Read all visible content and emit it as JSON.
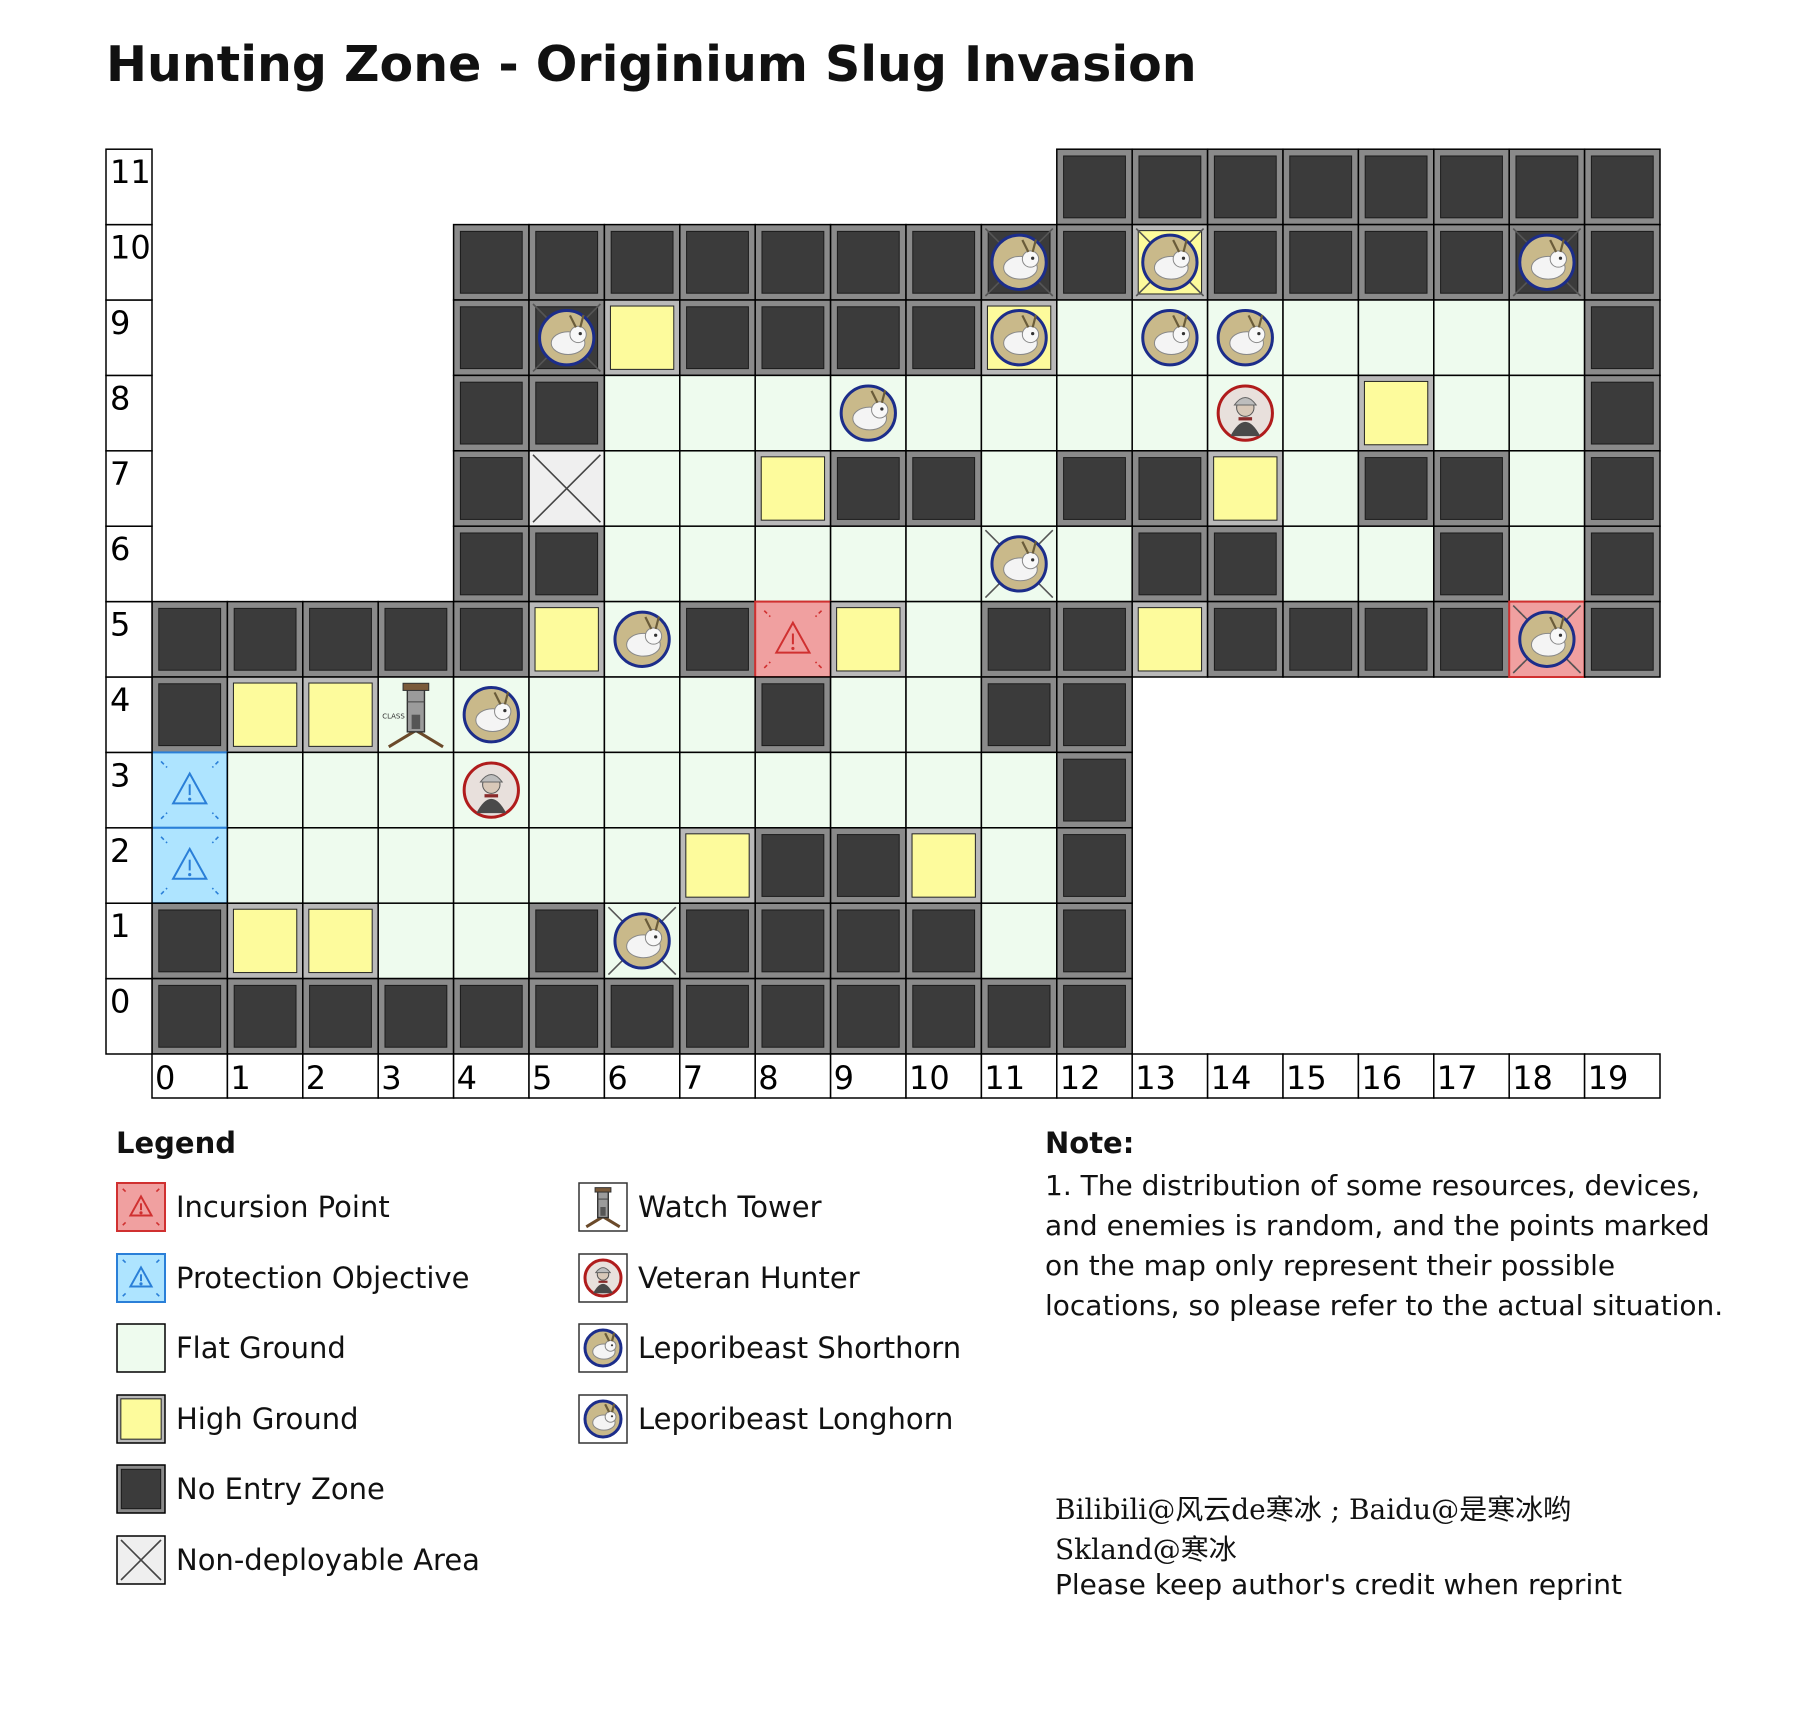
{
  "title": "Hunting Zone - Originium Slug Invasion",
  "grid": {
    "cols": 20,
    "rows": 12,
    "x_labels": [
      "0",
      "1",
      "2",
      "3",
      "4",
      "5",
      "6",
      "7",
      "8",
      "9",
      "10",
      "11",
      "12",
      "13",
      "14",
      "15",
      "16",
      "17",
      "18",
      "19"
    ],
    "y_labels": [
      "0",
      "1",
      "2",
      "3",
      "4",
      "5",
      "6",
      "7",
      "8",
      "9",
      "10",
      "11"
    ],
    "map_rows_top_to_bottom": [
      "............XXXXXXXX",
      "....XXXXXXXXXHXXXXXX",
      "....XXHXXXXHFFFFFFFX",
      "....XXFFFFFFFFFFHFFX",
      "....XNFFHXXFXXHFXXFX",
      "....XXFFFFFFFXXFFXFX",
      "XXXXXHFXIHFXXHXXXXIX",
      "XHHFFFFFXFFXX.......",
      "PFFFFFFFFFFFX.......",
      "PFFFFFFHXXHFX.......",
      "XHHFFXFXXXXFX.......",
      "XXXXXXXXXXXXX......."
    ],
    "tile_colors": {
      "F": "#eefbee",
      "H": "#fdfb9c",
      "X": "#3b3b3b",
      "N": "#efefef",
      "I": "#f0a0a0",
      "P": "#aee4ff"
    }
  },
  "markers": [
    {
      "type": "shorthorn",
      "x": 11,
      "y": 10,
      "no_deploy": true
    },
    {
      "type": "shorthorn",
      "x": 13,
      "y": 10,
      "no_deploy": true
    },
    {
      "type": "shorthorn",
      "x": 18,
      "y": 10,
      "no_deploy": true
    },
    {
      "type": "shorthorn",
      "x": 5,
      "y": 9,
      "no_deploy": true
    },
    {
      "type": "shorthorn",
      "x": 11,
      "y": 9
    },
    {
      "type": "shorthorn",
      "x": 13,
      "y": 9
    },
    {
      "type": "shorthorn",
      "x": 14,
      "y": 9
    },
    {
      "type": "shorthorn",
      "x": 9,
      "y": 8
    },
    {
      "type": "hunter",
      "x": 14,
      "y": 8
    },
    {
      "type": "shorthorn",
      "x": 11,
      "y": 6,
      "no_deploy": true
    },
    {
      "type": "shorthorn",
      "x": 6,
      "y": 5
    },
    {
      "type": "shorthorn",
      "x": 18,
      "y": 5,
      "no_deploy": true
    },
    {
      "type": "tower",
      "x": 3,
      "y": 4
    },
    {
      "type": "shorthorn",
      "x": 4,
      "y": 4
    },
    {
      "type": "hunter",
      "x": 4,
      "y": 3
    },
    {
      "type": "shorthorn",
      "x": 6,
      "y": 1,
      "no_deploy": true
    }
  ],
  "legend": {
    "title": "Legend",
    "left": [
      {
        "swatch": "incursion",
        "label": "Incursion Point"
      },
      {
        "swatch": "protection",
        "label": "Protection Objective"
      },
      {
        "swatch": "flat",
        "label": "Flat Ground"
      },
      {
        "swatch": "high",
        "label": "High Ground"
      },
      {
        "swatch": "noentry",
        "label": "No Entry Zone"
      },
      {
        "swatch": "nondeploy",
        "label": "Non-deployable Area"
      }
    ],
    "right": [
      {
        "swatch": "tower",
        "label": "Watch Tower"
      },
      {
        "swatch": "hunter",
        "label": "Veteran Hunter"
      },
      {
        "swatch": "shorthorn",
        "label": "Leporibeast Shorthorn"
      },
      {
        "swatch": "longhorn",
        "label": "Leporibeast Longhorn"
      }
    ]
  },
  "note": {
    "title": "Note:",
    "body": "1. The distribution of some resources, devices, and enemies is random, and the points marked on the map only represent their possible locations, so please refer to the actual situation."
  },
  "credits": {
    "line1": "Bilibili@风云de寒冰 ; Baidu@是寒冰哟",
    "line2": "Skland@寒冰",
    "line3": "Please keep author's credit when reprint"
  },
  "tower_badge": "CLASS"
}
